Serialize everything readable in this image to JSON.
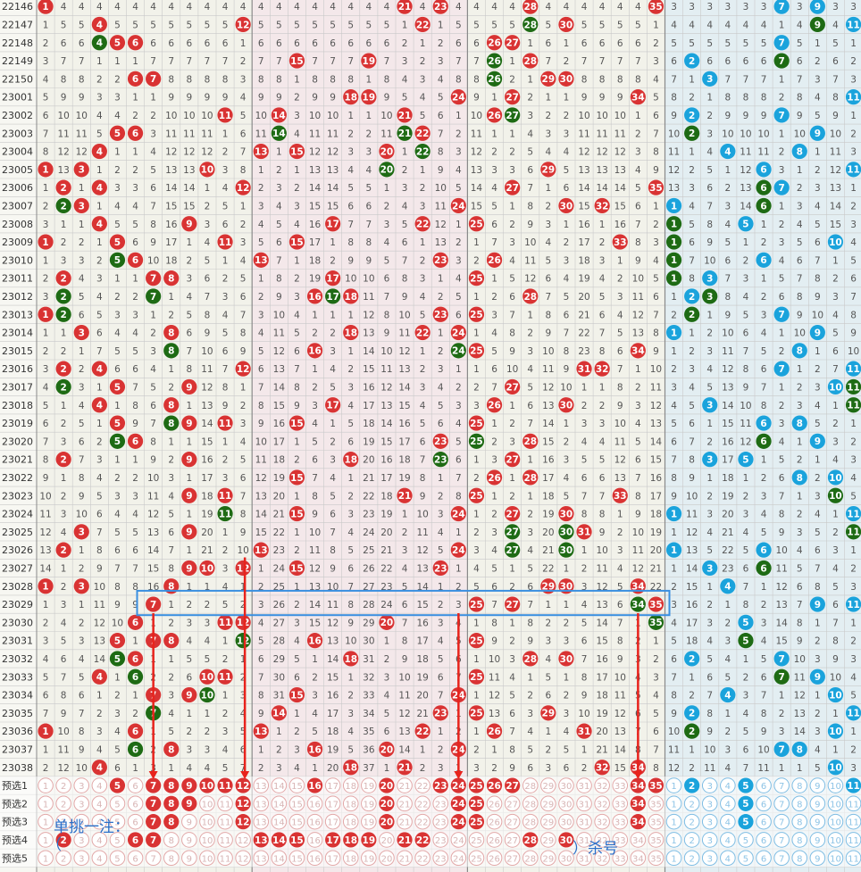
{
  "columns": {
    "red_count": 35,
    "blue_count": 12,
    "red_headers": [
      "01",
      "02",
      "03",
      "04",
      "05",
      "06",
      "07",
      "08",
      "09",
      "10",
      "11",
      "12",
      "13",
      "14",
      "15",
      "16",
      "17",
      "18",
      "19",
      "20",
      "21",
      "22",
      "23",
      "24",
      "25",
      "26",
      "27",
      "28",
      "29",
      "30",
      "31",
      "32",
      "33",
      "34",
      "35"
    ],
    "blue_headers": [
      "01",
      "02",
      "03",
      "04",
      "05",
      "06",
      "07",
      "08",
      "09",
      "10",
      "11",
      "12"
    ]
  },
  "colors": {
    "red_ball": "#d93333",
    "green_ball": "#1e6b14",
    "blue_ball": "#1aa3dc",
    "bg_light": "#f2f2ea",
    "bg_pink": "#f4e8ea",
    "bg_blue": "#e3eef2",
    "grid": "#c9c9c9",
    "highlight_box": "#3a8fe0",
    "arrow": "#e8231c",
    "annotation": "#2a6fc9"
  },
  "draws": [
    {
      "issue": "22146",
      "red": [
        1,
        21,
        23,
        28,
        35
      ],
      "blue": [
        7,
        9
      ]
    },
    {
      "issue": "22147",
      "red": [
        4,
        12,
        22,
        28,
        30
      ],
      "blue": [
        9,
        11
      ]
    },
    {
      "issue": "22148",
      "red": [
        4,
        5,
        6,
        26,
        27
      ],
      "blue": [
        7,
        12
      ]
    },
    {
      "issue": "22149",
      "red": [
        15,
        19,
        26,
        28
      ],
      "blue": [
        2,
        7,
        12
      ]
    },
    {
      "issue": "22150",
      "red": [
        6,
        7,
        26,
        29,
        30
      ],
      "blue": [
        3,
        12
      ]
    },
    {
      "issue": "23001",
      "red": [
        18,
        19,
        24,
        27,
        34
      ],
      "blue": [
        11,
        12
      ]
    },
    {
      "issue": "23002",
      "red": [
        11,
        14,
        21,
        26,
        27
      ],
      "blue": [
        2,
        7
      ]
    },
    {
      "issue": "23003",
      "red": [
        5,
        6,
        14,
        21,
        22
      ],
      "blue": [
        2,
        9
      ]
    },
    {
      "issue": "23004",
      "red": [
        4,
        13,
        15,
        20,
        22
      ],
      "blue": [
        4,
        8
      ]
    },
    {
      "issue": "23005",
      "red": [
        1,
        3,
        10,
        20,
        29
      ],
      "blue": [
        6,
        11
      ]
    },
    {
      "issue": "23006",
      "red": [
        2,
        4,
        12,
        27,
        35
      ],
      "blue": [
        6,
        7
      ]
    },
    {
      "issue": "23007",
      "red": [
        2,
        3,
        24,
        30,
        32
      ],
      "blue": [
        1,
        6
      ]
    },
    {
      "issue": "23008",
      "red": [
        4,
        9,
        17,
        22,
        25
      ],
      "blue": [
        1,
        5
      ]
    },
    {
      "issue": "23009",
      "red": [
        1,
        5,
        11,
        15,
        33
      ],
      "blue": [
        1,
        10
      ]
    },
    {
      "issue": "23010",
      "red": [
        5,
        6,
        13,
        23,
        26
      ],
      "blue": [
        1,
        6
      ]
    },
    {
      "issue": "23011",
      "red": [
        2,
        7,
        8,
        17,
        25
      ],
      "blue": [
        1,
        3
      ]
    },
    {
      "issue": "23012",
      "red": [
        2,
        7,
        16,
        17,
        18,
        28
      ],
      "blue": [
        2,
        3
      ]
    },
    {
      "issue": "23013",
      "red": [
        1,
        2,
        23,
        25
      ],
      "blue": [
        2,
        7
      ]
    },
    {
      "issue": "23014",
      "red": [
        3,
        8,
        18,
        22,
        24
      ],
      "blue": [
        1,
        9
      ]
    },
    {
      "issue": "23015",
      "red": [
        8,
        16,
        24,
        25,
        34
      ],
      "blue": [
        8,
        12
      ]
    },
    {
      "issue": "23016",
      "red": [
        2,
        4,
        12,
        31,
        32
      ],
      "blue": [
        7,
        11
      ]
    },
    {
      "issue": "23017",
      "red": [
        2,
        5,
        9,
        27
      ],
      "blue": [
        10,
        11
      ]
    },
    {
      "issue": "23018",
      "red": [
        4,
        8,
        17,
        26,
        30
      ],
      "blue": [
        3,
        11
      ]
    },
    {
      "issue": "23019",
      "red": [
        5,
        8,
        9,
        11,
        15,
        25
      ],
      "blue": [
        6,
        8
      ]
    },
    {
      "issue": "23020",
      "red": [
        5,
        6,
        23,
        25,
        28
      ],
      "blue": [
        6,
        9
      ]
    },
    {
      "issue": "23021",
      "red": [
        2,
        9,
        18,
        23,
        27
      ],
      "blue": [
        3,
        5
      ]
    },
    {
      "issue": "23022",
      "red": [
        15,
        26,
        28
      ],
      "blue": [
        8,
        10
      ]
    },
    {
      "issue": "23023",
      "red": [
        9,
        11,
        21,
        25,
        33
      ],
      "blue": [
        10
      ]
    },
    {
      "issue": "23024",
      "red": [
        11,
        15,
        24,
        27,
        30
      ],
      "blue": [
        1,
        11
      ]
    },
    {
      "issue": "23025",
      "red": [
        3,
        9,
        27,
        30,
        31
      ],
      "blue": [
        11,
        12
      ]
    },
    {
      "issue": "23026",
      "red": [
        2,
        13,
        24,
        27,
        30
      ],
      "blue": [
        1,
        6
      ]
    },
    {
      "issue": "23027",
      "red": [
        9,
        10,
        12,
        15,
        23
      ],
      "blue": [
        3,
        6
      ]
    },
    {
      "issue": "23028",
      "red": [
        1,
        3,
        8,
        29,
        30,
        34
      ],
      "blue": [
        4
      ]
    },
    {
      "issue": "23029",
      "red": [
        7,
        25,
        27,
        34,
        35
      ],
      "blue": [
        9,
        11
      ]
    },
    {
      "issue": "23030",
      "red": [
        6,
        11,
        12,
        20,
        35
      ],
      "blue": [
        5,
        12
      ]
    },
    {
      "issue": "23031",
      "red": [
        5,
        7,
        8,
        12,
        16,
        25
      ],
      "blue": [
        5
      ]
    },
    {
      "issue": "23032",
      "red": [
        5,
        6,
        18,
        28,
        30
      ],
      "blue": [
        2,
        7
      ]
    },
    {
      "issue": "23033",
      "red": [
        4,
        6,
        10,
        11,
        25
      ],
      "blue": [
        7,
        9
      ]
    },
    {
      "issue": "23034",
      "red": [
        7,
        9,
        10,
        15,
        24
      ],
      "blue": [
        4,
        10
      ]
    },
    {
      "issue": "23035",
      "red": [
        7,
        14,
        23,
        25,
        29
      ],
      "blue": [
        2,
        11
      ]
    },
    {
      "issue": "23036",
      "red": [
        1,
        6,
        13,
        22,
        26,
        31
      ],
      "blue": [
        2,
        10
      ]
    },
    {
      "issue": "23037",
      "red": [
        6,
        8,
        16,
        20,
        24
      ],
      "blue": [
        7,
        8
      ]
    },
    {
      "issue": "23038",
      "red": [
        4,
        18,
        21,
        32,
        34
      ],
      "blue": [
        10,
        12
      ]
    }
  ],
  "picks": [
    {
      "label": "预选1",
      "red": [
        5,
        7,
        8,
        9,
        10,
        11,
        12,
        16,
        20,
        23,
        24,
        25,
        26,
        27,
        34,
        35
      ],
      "blue": [
        2,
        5,
        11,
        12
      ]
    },
    {
      "label": "预选2",
      "red": [
        7,
        8,
        9,
        12,
        20,
        24,
        25,
        34
      ],
      "blue": [
        5,
        12
      ]
    },
    {
      "label": "预选3",
      "red": [
        7,
        8,
        12,
        20,
        24,
        25,
        34
      ],
      "blue": [
        5,
        12
      ]
    },
    {
      "label": "预选4",
      "red": [
        2,
        6,
        7,
        13,
        14,
        15,
        17,
        18,
        19,
        21,
        22,
        28,
        30
      ],
      "blue": []
    },
    {
      "label": "预选5",
      "red": [],
      "blue": []
    }
  ],
  "highlight_issue": "23029",
  "annotation": {
    "text": "单挑一注：",
    "kill_text": "）杀号",
    "bracket_open": "（"
  }
}
